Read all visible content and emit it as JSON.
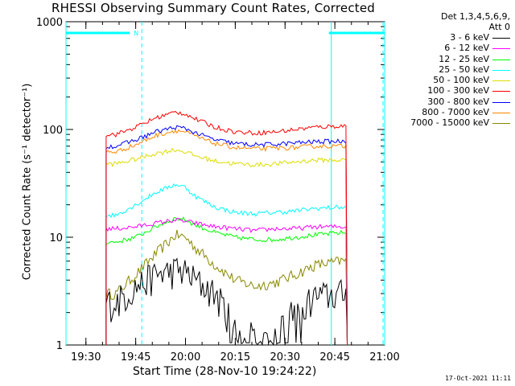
{
  "chart_data": {
    "type": "line",
    "title": "RHESSI Observing Summary Count Rates, Corrected",
    "xlabel": "Start Time (28-Nov-10 19:24:22)",
    "ylabel": "Corrected Count Rate (s⁻¹ detector⁻¹)",
    "yscale": "log",
    "ylim": [
      1,
      1000
    ],
    "xlim_minutes": [
      19.4,
      21.0
    ],
    "y_ticks": [
      "1",
      "10",
      "100",
      "1000"
    ],
    "x_ticks": [
      {
        "label": "19:30",
        "t": 19.5
      },
      {
        "label": "19:45",
        "t": 19.75
      },
      {
        "label": "20:00",
        "t": 20.0
      },
      {
        "label": "20:15",
        "t": 20.25
      },
      {
        "label": "20:30",
        "t": 20.5
      },
      {
        "label": "20:45",
        "t": 20.75
      },
      {
        "label": "21:00",
        "t": 21.0
      }
    ],
    "legend_header": [
      "Det 1,3,4,5,6,9,",
      "Att 0"
    ],
    "legend_position": "right",
    "x_hours": [
      19.65,
      19.75,
      19.85,
      19.95,
      20.0,
      20.05,
      20.15,
      20.25,
      20.35,
      20.45,
      20.55,
      20.65,
      20.78
    ],
    "series": [
      {
        "name": "3 - 6 keV",
        "color": "#000000",
        "values": [
          2.5,
          3.5,
          4.5,
          5.0,
          4.8,
          4.0,
          3.0,
          1.5,
          1.3,
          1.4,
          2.0,
          2.8,
          3.0
        ]
      },
      {
        "name": "6 - 12 keV",
        "color": "#ff00ff",
        "values": [
          12.0,
          12.5,
          13.5,
          14.5,
          14.0,
          13.5,
          12.5,
          12.0,
          11.5,
          12.0,
          12.0,
          12.5,
          12.5
        ]
      },
      {
        "name": "12 - 25 keV",
        "color": "#00ff00",
        "values": [
          9.0,
          10.0,
          12.5,
          15.0,
          14.5,
          13.0,
          11.0,
          10.0,
          9.5,
          9.5,
          10.0,
          10.5,
          11.0
        ]
      },
      {
        "name": "25 - 50 keV",
        "color": "#00ffff",
        "values": [
          16.0,
          20.0,
          26.0,
          31.0,
          29.0,
          24.0,
          19.0,
          17.0,
          16.5,
          17.0,
          17.5,
          18.5,
          19.0
        ]
      },
      {
        "name": "50 - 100 keV",
        "color": "#dddd00",
        "values": [
          48.0,
          53.0,
          60.0,
          65.0,
          62.0,
          57.0,
          51.0,
          48.0,
          47.0,
          48.0,
          50.0,
          52.0,
          52.0
        ]
      },
      {
        "name": "100 - 300 keV",
        "color": "#ff0000",
        "values": [
          90.0,
          105.0,
          128.0,
          145.0,
          140.0,
          125.0,
          105.0,
          95.0,
          93.0,
          95.0,
          100.0,
          105.0,
          108.0
        ]
      },
      {
        "name": "300 - 800 keV",
        "color": "#0000ff",
        "values": [
          70.0,
          80.0,
          95.0,
          105.0,
          102.0,
          93.0,
          80.0,
          74.0,
          72.0,
          73.0,
          75.0,
          77.0,
          78.0
        ]
      },
      {
        "name": "800 - 7000 keV",
        "color": "#ff8800",
        "values": [
          62.0,
          72.0,
          88.0,
          98.0,
          95.0,
          86.0,
          74.0,
          68.0,
          66.0,
          67.0,
          68.0,
          70.0,
          70.0
        ]
      },
      {
        "name": "7000 - 15000 keV",
        "color": "#888800",
        "values": [
          3.0,
          4.5,
          7.0,
          10.5,
          10.0,
          8.0,
          5.5,
          4.0,
          3.5,
          3.8,
          4.5,
          5.5,
          6.0
        ]
      }
    ],
    "flag_bars": [
      {
        "label": "N",
        "t_start": 19.4,
        "t_end": 19.72,
        "color": "#00ffff"
      },
      {
        "label": "",
        "t_start": 20.72,
        "t_end": 21.0,
        "color": "#00ffff"
      }
    ]
  },
  "footer": {
    "timestamp": "17-Oct-2021 11:11"
  }
}
